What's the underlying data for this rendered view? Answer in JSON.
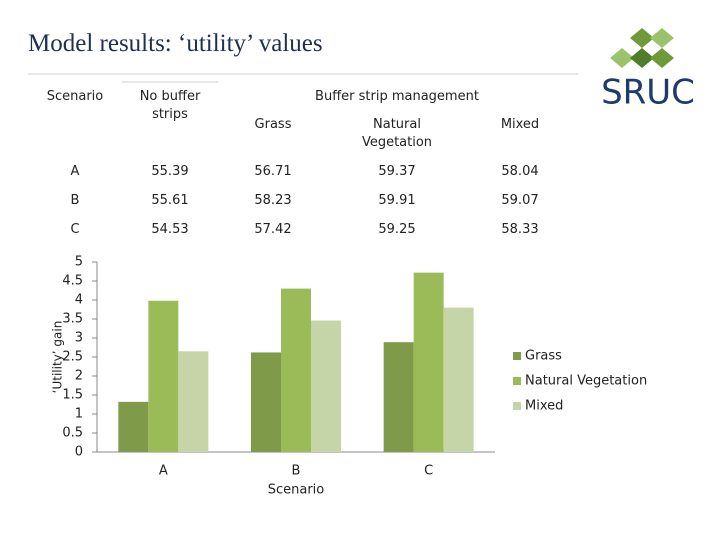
{
  "title": "Model results: ‘utility’ values",
  "logo": "SRUC",
  "table": {
    "header": {
      "scenario": "Scenario",
      "no_buffer": "No buffer strips",
      "group": "Buffer strip management",
      "columns": [
        "Grass",
        "Natural Vegetation",
        "Mixed"
      ]
    },
    "rows": [
      [
        "A",
        "55.39",
        "56.71",
        "59.37",
        "58.04"
      ],
      [
        "B",
        "55.61",
        "58.23",
        "59.91",
        "59.07"
      ],
      [
        "C",
        "54.53",
        "57.42",
        "59.25",
        "58.33"
      ]
    ]
  },
  "chart_data": {
    "type": "bar",
    "categories": [
      "A",
      "B",
      "C"
    ],
    "x_label": "Scenario",
    "y_label": "‘Utility’ gain",
    "series": [
      {
        "name": "Grass",
        "color": "#7f9a48",
        "values": [
          1.32,
          2.62,
          2.89
        ]
      },
      {
        "name": "Natural Vegetation",
        "color": "#9bbb59",
        "values": [
          3.98,
          4.3,
          4.72
        ]
      },
      {
        "name": "Mixed",
        "color": "#c6d5a8",
        "values": [
          2.65,
          3.46,
          3.8
        ]
      }
    ],
    "ylim": [
      0,
      5
    ],
    "yticks": [
      0,
      0.5,
      1,
      1.5,
      2,
      2.5,
      3,
      3.5,
      4,
      4.5,
      5
    ],
    "legend": "right"
  }
}
